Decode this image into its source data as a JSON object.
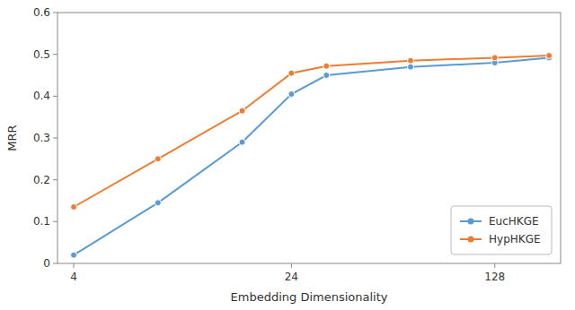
{
  "chart_data": {
    "type": "line",
    "x_label": "Embedding Dimensionality",
    "y_label": "MRR",
    "x": [
      4,
      8,
      16,
      24,
      32,
      64,
      128,
      200
    ],
    "series": [
      {
        "name": "EucHKGE",
        "color": "#5b9bd5",
        "marker": "circle",
        "values": [
          0.02,
          0.145,
          0.29,
          0.405,
          0.45,
          0.47,
          0.48,
          0.492
        ]
      },
      {
        "name": "HypHKGE",
        "color": "#ed7d31",
        "marker": "circle",
        "values": [
          0.135,
          0.25,
          0.365,
          0.455,
          0.472,
          0.485,
          0.492,
          0.497
        ]
      }
    ],
    "log": "x",
    "xlim": [
      3.5,
      220
    ],
    "xticks": [
      4,
      24,
      128
    ],
    "ylim": [
      0,
      0.6
    ],
    "yticks": [
      0.0,
      0.1,
      0.2,
      0.3,
      0.4,
      0.5,
      0.6
    ],
    "grid": false,
    "legend": "lower right"
  }
}
